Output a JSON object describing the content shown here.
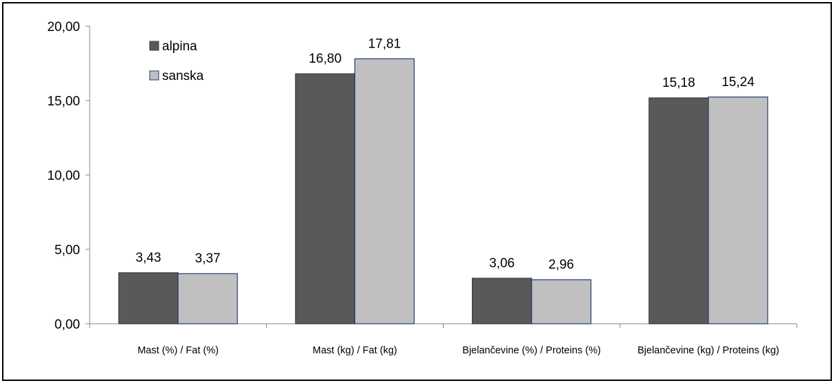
{
  "chart_data": {
    "type": "bar",
    "title": "",
    "xlabel": "",
    "ylabel": "",
    "categories": [
      "Mast (%) / Fat (%)",
      "Mast (kg) / Fat (kg)",
      "Bjelančevine (%) / Proteins (%)",
      "Bjelančevine (kg) / Proteins (kg)"
    ],
    "series": [
      {
        "name": "alpina",
        "values": [
          3.43,
          16.8,
          3.06,
          15.18
        ],
        "labels": [
          "3,43",
          "16,80",
          "3,06",
          "15,18"
        ],
        "color": "#595959"
      },
      {
        "name": "sanska",
        "values": [
          3.37,
          17.81,
          2.96,
          15.24
        ],
        "labels": [
          "3,37",
          "17,81",
          "2,96",
          "15,24"
        ],
        "color": "#c0c0c0"
      }
    ],
    "ylim": [
      0,
      20
    ],
    "yticks": [
      0,
      5,
      10,
      15,
      20
    ],
    "ytick_labels": [
      "0,00",
      "5,00",
      "10,00",
      "15,00",
      "20,00"
    ],
    "grid": false,
    "legend": "top-left"
  }
}
